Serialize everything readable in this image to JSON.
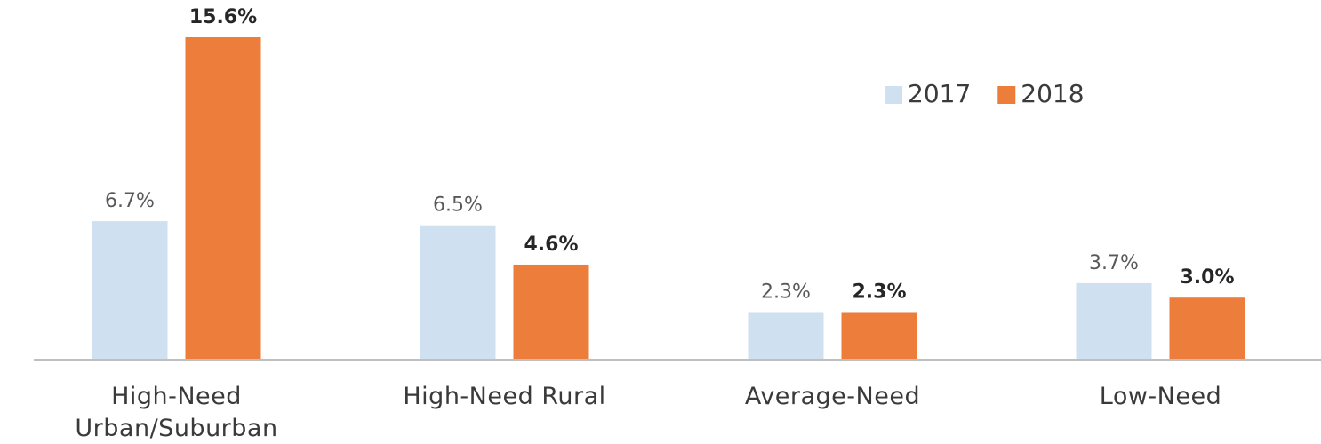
{
  "chart_data": {
    "type": "bar",
    "categories": [
      "High-Need Urban/Suburban",
      "High-Need Rural",
      "Average-Need",
      "Low-Need"
    ],
    "series": [
      {
        "name": "2017",
        "color": "#cfe0f1",
        "values": [
          6.7,
          6.5,
          2.3,
          3.7
        ],
        "value_labels": [
          "6.7%",
          "6.5%",
          "2.3%",
          "3.7%"
        ]
      },
      {
        "name": "2018",
        "color": "#ed7d3a",
        "values": [
          15.6,
          4.6,
          2.3,
          3.0
        ],
        "value_labels": [
          "15.6%",
          "4.6%",
          "2.3%",
          "3.0%"
        ]
      }
    ],
    "ylim": [
      0,
      17
    ],
    "legend": "upper right"
  }
}
